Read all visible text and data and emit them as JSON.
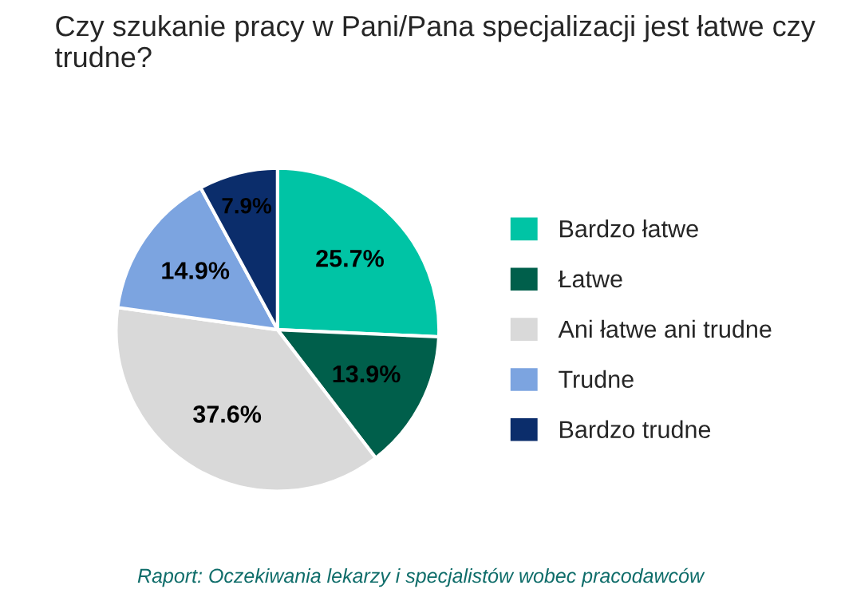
{
  "chart_data": {
    "type": "pie",
    "title": "Czy szukanie pracy w Pani/Pana specjalizacji jest łatwe czy trudne?",
    "categories": [
      "Bardzo łatwe",
      "Łatwe",
      "Ani łatwe ani trudne",
      "Trudne",
      "Bardzo trudne"
    ],
    "values": [
      25.7,
      13.9,
      37.6,
      14.9,
      7.9
    ],
    "colors": [
      "#00c4a5",
      "#005f4b",
      "#d9d9d9",
      "#7ca4e0",
      "#0b2d6b"
    ],
    "value_labels": [
      "25.7%",
      "13.9%",
      "37.6%",
      "14.9%",
      "7.9%"
    ],
    "legend": "right",
    "annotations": [
      "Raport: Oczekiwania lekarzy i specjalistów wobec pracodawców"
    ]
  }
}
